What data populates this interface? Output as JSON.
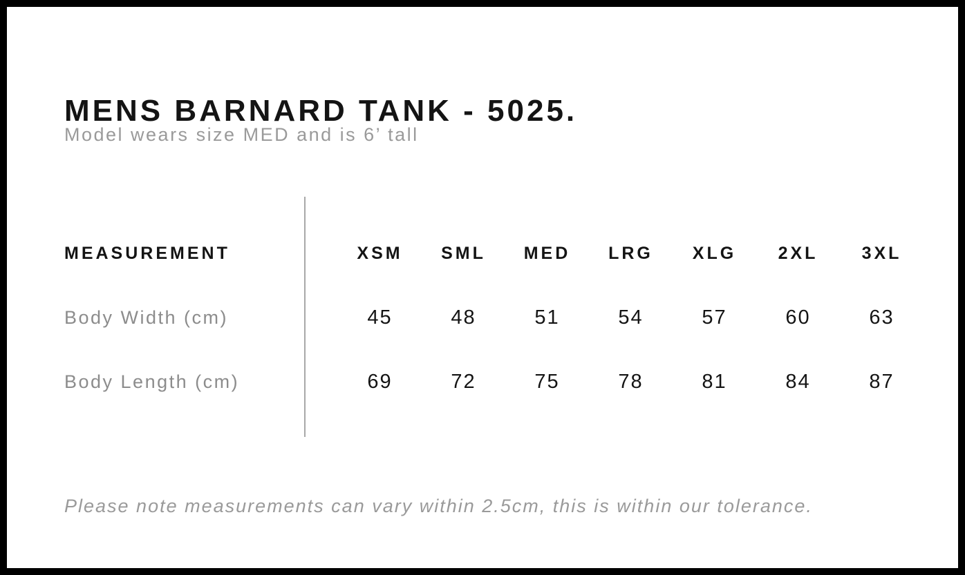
{
  "page": {
    "title": "MENS BARNARD TANK - 5025.",
    "subtitle": "Model wears size MED and is 6’ tall",
    "note": "Please note measurements can vary within 2.5cm, this is within our tolerance."
  },
  "size_chart": {
    "header_label": "MEASUREMENT",
    "sizes": [
      "XSM",
      "SML",
      "MED",
      "LRG",
      "XLG",
      "2XL",
      "3XL"
    ],
    "rows": [
      {
        "label": "Body Width (cm)",
        "values": [
          "45",
          "48",
          "51",
          "54",
          "57",
          "60",
          "63"
        ]
      },
      {
        "label": "Body Length (cm)",
        "values": [
          "69",
          "72",
          "75",
          "78",
          "81",
          "84",
          "87"
        ]
      }
    ]
  },
  "colors": {
    "border": "#000000",
    "text_primary": "#141414",
    "text_muted": "#9a9a9a",
    "divider": "#a8a8a8",
    "background": "#ffffff"
  },
  "chart_data": {
    "type": "table",
    "title": "MENS BARNARD TANK - 5025.",
    "columns": [
      "MEASUREMENT",
      "XSM",
      "SML",
      "MED",
      "LRG",
      "XLG",
      "2XL",
      "3XL"
    ],
    "rows": [
      [
        "Body Width (cm)",
        45,
        48,
        51,
        54,
        57,
        60,
        63
      ],
      [
        "Body Length (cm)",
        69,
        72,
        75,
        78,
        81,
        84,
        87
      ]
    ]
  }
}
